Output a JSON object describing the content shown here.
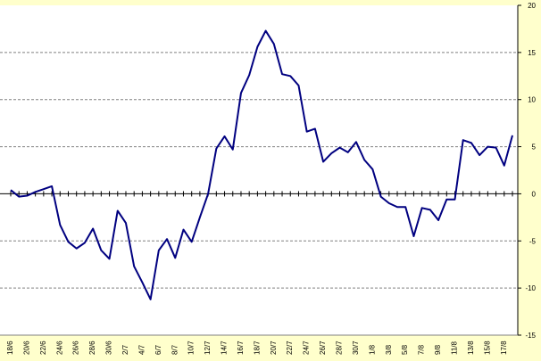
{
  "chart_data": {
    "type": "line",
    "title": "",
    "xlabel": "",
    "ylabel": "",
    "ylim": [
      -15,
      20
    ],
    "yticks": [
      -15,
      -10,
      -5,
      0,
      5,
      10,
      15,
      20
    ],
    "grid": true,
    "colors": {
      "background": "#ffffcc",
      "plot_area": "#ffffff",
      "line": "#000080",
      "grid": "#808080"
    },
    "x_tick_labels": [
      "18/6",
      "20/6",
      "22/6",
      "24/6",
      "26/6",
      "28/6",
      "30/6",
      "2/7",
      "4/7",
      "6/7",
      "8/7",
      "10/7",
      "12/7",
      "14/7",
      "16/7",
      "18/7",
      "20/7",
      "22/7",
      "24/7",
      "26/7",
      "28/7",
      "30/7",
      "1/8",
      "3/8",
      "5/8",
      "7/8",
      "9/8",
      "11/8",
      "13/8",
      "15/8",
      "17/8"
    ],
    "series": [
      {
        "values": [
          0.4,
          -0.3,
          -0.2,
          0.2,
          0.5,
          0.8,
          -3.3,
          -5.1,
          -5.8,
          -5.2,
          -3.7,
          -6,
          -6.9,
          -1.8,
          -3.1,
          -7.7,
          -9.4,
          -11.2,
          -6,
          -4.8,
          -6.8,
          -3.8,
          -5.1,
          -2.5,
          0,
          4.8,
          6.1,
          4.7,
          10.7,
          12.6,
          15.6,
          17.3,
          15.9,
          12.7,
          12.5,
          11.5,
          6.6,
          6.9,
          3.4,
          4.3,
          4.9,
          4.4,
          5.5,
          3.6,
          2.6,
          -0.3,
          -1,
          -1.4,
          -1.4,
          -4.5,
          -1.5,
          -1.7,
          -2.8,
          -0.6,
          -0.6,
          5.7,
          5.4,
          4.1,
          5,
          4.9,
          3,
          6.2
        ]
      }
    ]
  }
}
